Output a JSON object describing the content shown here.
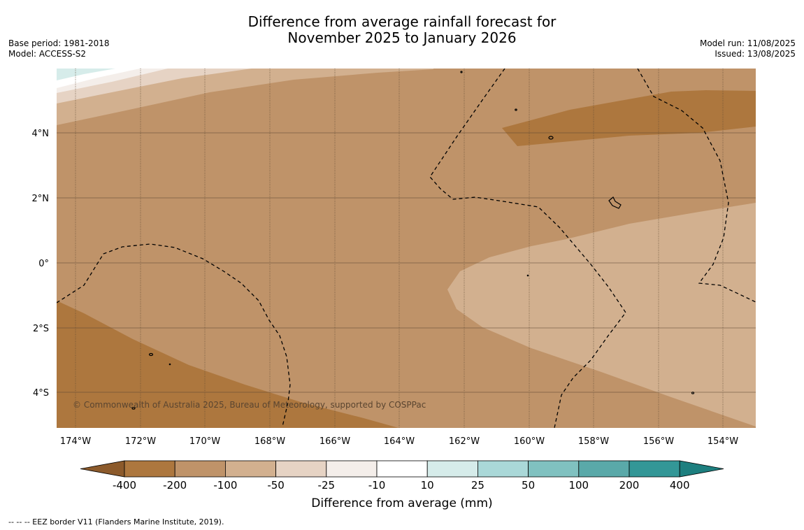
{
  "title_line1": "Difference from average rainfall forecast for",
  "title_line2": "November 2025 to January 2026",
  "meta": {
    "base_period": "Base period: 1981-2018",
    "model": "Model: ACCESS-S2",
    "model_run": "Model run: 11/08/2025",
    "issued": "Issued: 13/08/2025"
  },
  "latitude_labels": [
    "4°N",
    "2°N",
    "0°",
    "2°S",
    "4°S"
  ],
  "longitude_labels": [
    "174°W",
    "172°W",
    "170°W",
    "168°W",
    "166°W",
    "164°W",
    "162°W",
    "160°W",
    "158°W",
    "156°W",
    "154°W"
  ],
  "copyright": "© Commonwealth of Australia 2025, Bureau of Meteorology, supported by COSPPac",
  "colorbar": {
    "title": "Difference from average (mm)",
    "tick_labels": [
      "-400",
      "-200",
      "-100",
      "-50",
      "-25",
      "-10",
      "10",
      "25",
      "50",
      "100",
      "200",
      "400"
    ],
    "colors": [
      "#8c5a2b",
      "#ad773e",
      "#bf9369",
      "#d2b08f",
      "#e6d3c4",
      "#f4eeea",
      "#ffffff",
      "#d6ecea",
      "#aad8d8",
      "#80c1c0",
      "#5aa9a9",
      "#339797",
      "#1d7f7f"
    ]
  },
  "map": {
    "land_color": "#000000",
    "grid_color": "#5f4a34",
    "eez_style": "dashed"
  },
  "footnote": "--  --  -- EEZ border V11 (Flanders Marine Institute, 2019)."
}
